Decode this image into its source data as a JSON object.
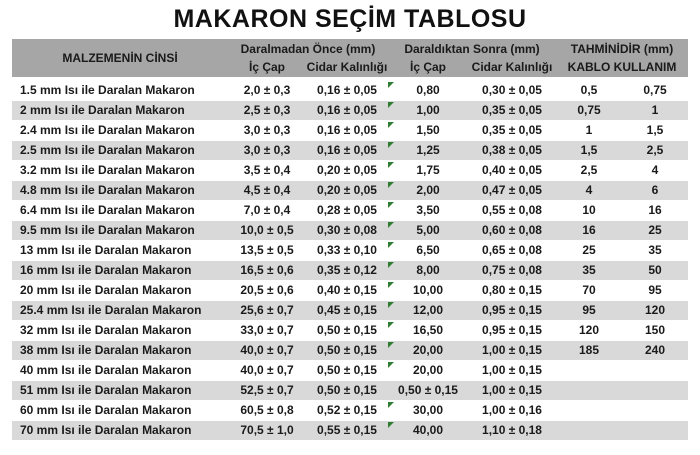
{
  "title": "MAKARON SEÇİM TABLOSU",
  "colors": {
    "header_bg": "#a6a6a6",
    "band_bg": "#d9d9d9",
    "text": "#1a1a1a",
    "indicator_green": "#2e7d32"
  },
  "table": {
    "header": {
      "material": "MALZEMENİN CİNSİ",
      "group_before": "Daralmadan Önce (mm)",
      "group_after": "Daraldıktan Sonra (mm)",
      "group_estimate": "TAHMİNİDİR (mm)",
      "ic_cap_before": "İç Çap",
      "cidar_before": "Cidar Kalınlığı",
      "ic_cap_after": "İç Çap",
      "cidar_after": "Cidar Kalınlığı",
      "kablo": "KABLO KULLANIM"
    },
    "indicator_icon": "error-indicator-icon",
    "rows": [
      {
        "material": "1.5 mm Isı ile Daralan Makaron",
        "ic1": "2,0 ± 0,3",
        "cidar1": "0,16 ± 0,05",
        "ic2": "0,80",
        "cidar2": "0,30 ± 0,05",
        "k1": "0,5",
        "k2": "0,75",
        "indicator": true
      },
      {
        "material": "2 mm Isı ile Daralan Makaron",
        "ic1": "2,5 ± 0,3",
        "cidar1": "0,16 ± 0,05",
        "ic2": "1,00",
        "cidar2": "0,35 ± 0,05",
        "k1": "0,75",
        "k2": "1",
        "indicator": true
      },
      {
        "material": "2.4 mm Isı ile Daralan Makaron",
        "ic1": "3,0 ± 0,3",
        "cidar1": "0,16 ± 0,05",
        "ic2": "1,50",
        "cidar2": "0,35 ± 0,05",
        "k1": "1",
        "k2": "1,5",
        "indicator": true
      },
      {
        "material": "2.5 mm Isı ile Daralan Makaron",
        "ic1": "3,0 ± 0,3",
        "cidar1": "0,16 ± 0,05",
        "ic2": "1,25",
        "cidar2": "0,38 ± 0,05",
        "k1": "1,5",
        "k2": "2,5",
        "indicator": true
      },
      {
        "material": "3.2 mm Isı ile Daralan Makaron",
        "ic1": "3,5 ± 0,4",
        "cidar1": "0,20 ± 0,05",
        "ic2": "1,75",
        "cidar2": "0,40 ± 0,05",
        "k1": "2,5",
        "k2": "4",
        "indicator": true
      },
      {
        "material": "4.8 mm Isı ile Daralan Makaron",
        "ic1": "4,5 ± 0,4",
        "cidar1": "0,20 ± 0,05",
        "ic2": "2,00",
        "cidar2": "0,47 ± 0,05",
        "k1": "4",
        "k2": "6",
        "indicator": true
      },
      {
        "material": "6.4 mm Isı ile Daralan Makaron",
        "ic1": "7,0 ± 0,4",
        "cidar1": "0,28 ± 0,05",
        "ic2": "3,50",
        "cidar2": "0,55 ± 0,08",
        "k1": "10",
        "k2": "16",
        "indicator": true
      },
      {
        "material": "9.5 mm Isı ile Daralan Makaron",
        "ic1": "10,0 ± 0,5",
        "cidar1": "0,30 ± 0,08",
        "ic2": "5,00",
        "cidar2": "0,60 ± 0,08",
        "k1": "16",
        "k2": "25",
        "indicator": true
      },
      {
        "material": "13 mm Isı ile Daralan Makaron",
        "ic1": "13,5 ± 0,5",
        "cidar1": "0,33 ± 0,10",
        "ic2": "6,50",
        "cidar2": "0,65 ± 0,08",
        "k1": "25",
        "k2": "35",
        "indicator": true
      },
      {
        "material": "16 mm Isı ile Daralan Makaron",
        "ic1": "16,5 ± 0,6",
        "cidar1": "0,35 ± 0,12",
        "ic2": "8,00",
        "cidar2": "0,75 ± 0,08",
        "k1": "35",
        "k2": "50",
        "indicator": true
      },
      {
        "material": "20 mm Isı ile Daralan Makaron",
        "ic1": "20,5 ± 0,6",
        "cidar1": "0,40 ± 0,15",
        "ic2": "10,00",
        "cidar2": "0,80 ± 0,15",
        "k1": "70",
        "k2": "95",
        "indicator": true
      },
      {
        "material": "25.4 mm Isı ile Daralan Makaron",
        "ic1": "25,6 ± 0,7",
        "cidar1": "0,45 ± 0,15",
        "ic2": "12,00",
        "cidar2": "0,95 ± 0,15",
        "k1": "95",
        "k2": "120",
        "indicator": true
      },
      {
        "material": "32 mm Isı ile Daralan Makaron",
        "ic1": "33,0 ± 0,7",
        "cidar1": "0,50 ± 0,15",
        "ic2": "16,50",
        "cidar2": "0,95 ± 0,15",
        "k1": "120",
        "k2": "150",
        "indicator": true
      },
      {
        "material": "38 mm Isı ile Daralan Makaron",
        "ic1": "40,0 ± 0,7",
        "cidar1": "0,50 ± 0,15",
        "ic2": "20,00",
        "cidar2": "1,00 ± 0,15",
        "k1": "185",
        "k2": "240",
        "indicator": true
      },
      {
        "material": "40 mm Isı ile Daralan Makaron",
        "ic1": "40,0 ± 0,7",
        "cidar1": "0,50 ± 0,15",
        "ic2": "20,00",
        "cidar2": "1,00 ± 0,15",
        "k1": "",
        "k2": "",
        "indicator": true
      },
      {
        "material": "51 mm Isı ile Daralan Makaron",
        "ic1": "52,5 ± 0,7",
        "cidar1": "0,50 ± 0,15",
        "ic2": "0,50 ± 0,15",
        "cidar2": "1,00 ± 0,15",
        "k1": "",
        "k2": "",
        "indicator": false
      },
      {
        "material": "60 mm Isı ile Daralan Makaron",
        "ic1": "60,5 ± 0,8",
        "cidar1": "0,52 ± 0,15",
        "ic2": "30,00",
        "cidar2": "1,00 ± 0,16",
        "k1": "",
        "k2": "",
        "indicator": true
      },
      {
        "material": "70 mm Isı ile Daralan Makaron",
        "ic1": "70,5 ± 1,0",
        "cidar1": "0,55 ± 0,15",
        "ic2": "40,00",
        "cidar2": "1,10 ± 0,18",
        "k1": "",
        "k2": "",
        "indicator": true
      }
    ]
  }
}
